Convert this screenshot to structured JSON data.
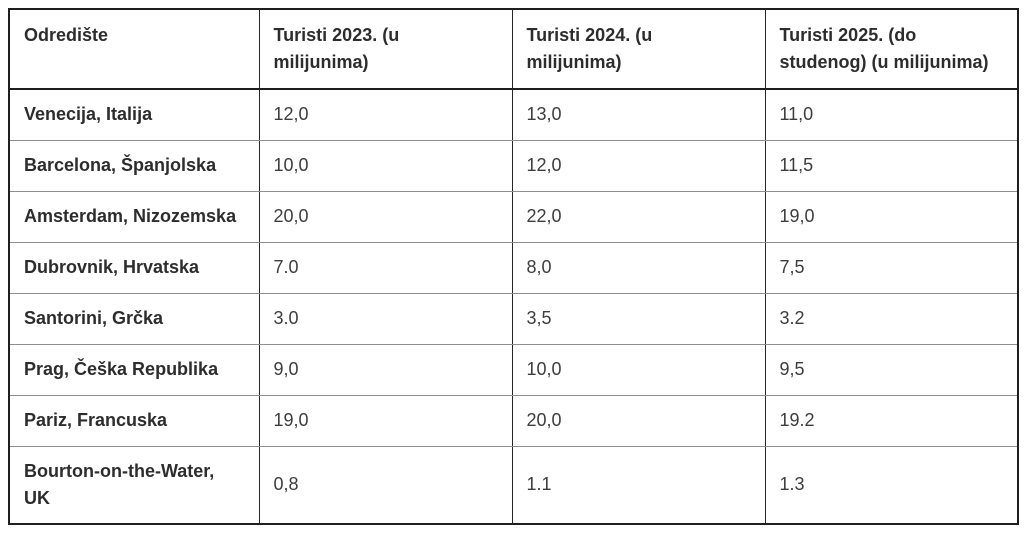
{
  "table": {
    "columns": [
      {
        "label": "Odredište"
      },
      {
        "label": "Turisti 2023. (u\nmilijunima)"
      },
      {
        "label": "Turisti 2024. (u\nmilijunima)"
      },
      {
        "label": "Turisti 2025. (do\nstudenog) (u milijunima)"
      }
    ],
    "rows": [
      {
        "destination": "Venecija, Italija",
        "y2023": "12,0",
        "y2024": "13,0",
        "y2025": "11,0"
      },
      {
        "destination": "Barcelona, Španjolska",
        "y2023": "10,0",
        "y2024": "12,0",
        "y2025": "11,5"
      },
      {
        "destination": "Amsterdam, Nizozemska",
        "y2023": "20,0",
        "y2024": "22,0",
        "y2025": "19,0"
      },
      {
        "destination": "Dubrovnik, Hrvatska",
        "y2023": "7.0",
        "y2024": "8,0",
        "y2025": "7,5"
      },
      {
        "destination": "Santorini, Grčka",
        "y2023": "3.0",
        "y2024": "3,5",
        "y2025": "3.2"
      },
      {
        "destination": "Prag, Češka Republika",
        "y2023": "9,0",
        "y2024": "10,0",
        "y2025": "9,5"
      },
      {
        "destination": "Pariz, Francuska",
        "y2023": "19,0",
        "y2024": "20,0",
        "y2025": "19.2"
      },
      {
        "destination": "Bourton-on-the-Water,\nUK",
        "y2023": "0,8",
        "y2024": "1.1",
        "y2025": "1.3"
      }
    ],
    "colors": {
      "outer_border": "#1f1f1f",
      "column_divider": "#262626",
      "row_divider": "#8f8f8f",
      "header_text": "#2d2d2d",
      "cell_text": "#3d3d3d",
      "background": "#ffffff"
    }
  },
  "chart_data": {
    "type": "table",
    "title": "",
    "columns": [
      "Odredište",
      "Turisti 2023. (u milijunima)",
      "Turisti 2024. (u milijunima)",
      "Turisti 2025. (do studenog) (u milijunima)"
    ],
    "categories": [
      "Venecija, Italija",
      "Barcelona, Španjolska",
      "Amsterdam, Nizozemska",
      "Dubrovnik, Hrvatska",
      "Santorini, Grčka",
      "Prag, Češka Republika",
      "Pariz, Francuska",
      "Bourton-on-the-Water, UK"
    ],
    "series": [
      {
        "name": "Turisti 2023. (u milijunima)",
        "values": [
          12.0,
          10.0,
          20.0,
          7.0,
          3.0,
          9.0,
          19.0,
          0.8
        ]
      },
      {
        "name": "Turisti 2024. (u milijunima)",
        "values": [
          13.0,
          12.0,
          22.0,
          8.0,
          3.5,
          10.0,
          20.0,
          1.1
        ]
      },
      {
        "name": "Turisti 2025. (do studenog) (u milijunima)",
        "values": [
          11.0,
          11.5,
          19.0,
          7.5,
          3.2,
          9.5,
          19.2,
          1.3
        ]
      }
    ]
  }
}
